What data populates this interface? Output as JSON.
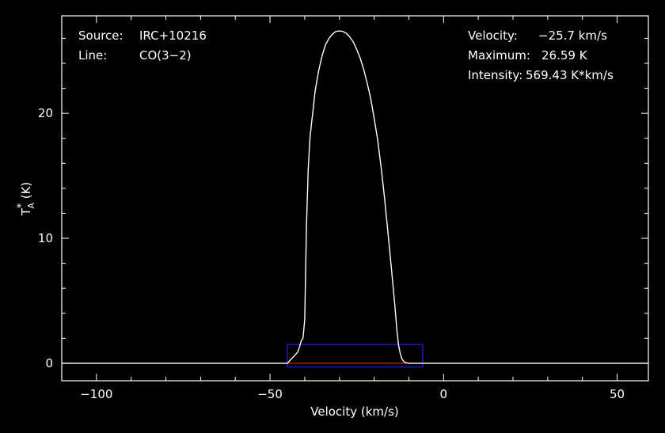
{
  "chart_data": {
    "type": "line",
    "xlabel": "Velocity (km/s)",
    "ylabel_main": "T",
    "ylabel_super": "*",
    "ylabel_sub": "A",
    "ylabel_unit": " (K)",
    "xlim": [
      -110,
      59
    ],
    "ylim": [
      -1.4,
      27.8
    ],
    "xticks": [
      -100,
      -50,
      0,
      50
    ],
    "xtick_labels": [
      "−100",
      "−50",
      "0",
      "50"
    ],
    "yticks": [
      0,
      10,
      20
    ],
    "ytick_labels": [
      "0",
      "10",
      "20"
    ],
    "baseline": 0,
    "fit_window": {
      "x_min": -45,
      "x_max": -6,
      "y_max": 1.5
    },
    "series": [
      {
        "x": [
          -110,
          -90,
          -70,
          -55,
          -45,
          -44,
          -43,
          -42,
          -41.5,
          -41,
          -40.5,
          -40,
          -39.8,
          -39.5,
          -39,
          -38.5,
          -38,
          -37.5,
          -37,
          -36,
          -35,
          -34,
          -33,
          -32,
          -31,
          -30,
          -29,
          -28,
          -27,
          -26,
          -25,
          -24,
          -23,
          -22,
          -21,
          -20,
          -19,
          -18,
          -17,
          -16,
          -15,
          -14,
          -13.5,
          -13,
          -12.5,
          -12,
          -11.5,
          -11,
          -10,
          -8,
          -5,
          10,
          30,
          59
        ],
        "y": [
          0,
          0,
          0,
          0,
          0,
          0.3,
          0.6,
          0.9,
          1.3,
          1.8,
          2.0,
          3.5,
          6.5,
          11.0,
          15.5,
          18.0,
          19.3,
          20.5,
          21.8,
          23.4,
          24.6,
          25.5,
          26.0,
          26.35,
          26.55,
          26.59,
          26.55,
          26.4,
          26.1,
          25.7,
          25.1,
          24.4,
          23.5,
          22.4,
          21.2,
          19.6,
          17.9,
          15.7,
          13.2,
          10.4,
          7.5,
          4.5,
          2.8,
          1.5,
          0.8,
          0.35,
          0.15,
          0.05,
          0,
          0,
          0,
          0,
          0,
          0
        ]
      }
    ]
  },
  "info": {
    "source_label": "Source:",
    "source_value": "IRC+10216",
    "line_label": "Line:",
    "line_value": "CO(3−2)",
    "velocity_label": "Velocity:",
    "velocity_value": "−25.7 km/s",
    "maximum_label": "Maximum:",
    "maximum_value": "26.59 K",
    "intensity_label": "Intensity:",
    "intensity_value": "569.43 K*km/s"
  },
  "colors": {
    "background": "#000000",
    "axes": "#ffffff",
    "spectrum": "#ffffff",
    "baseline": "#cc2222",
    "window": "#1a1ad0"
  }
}
